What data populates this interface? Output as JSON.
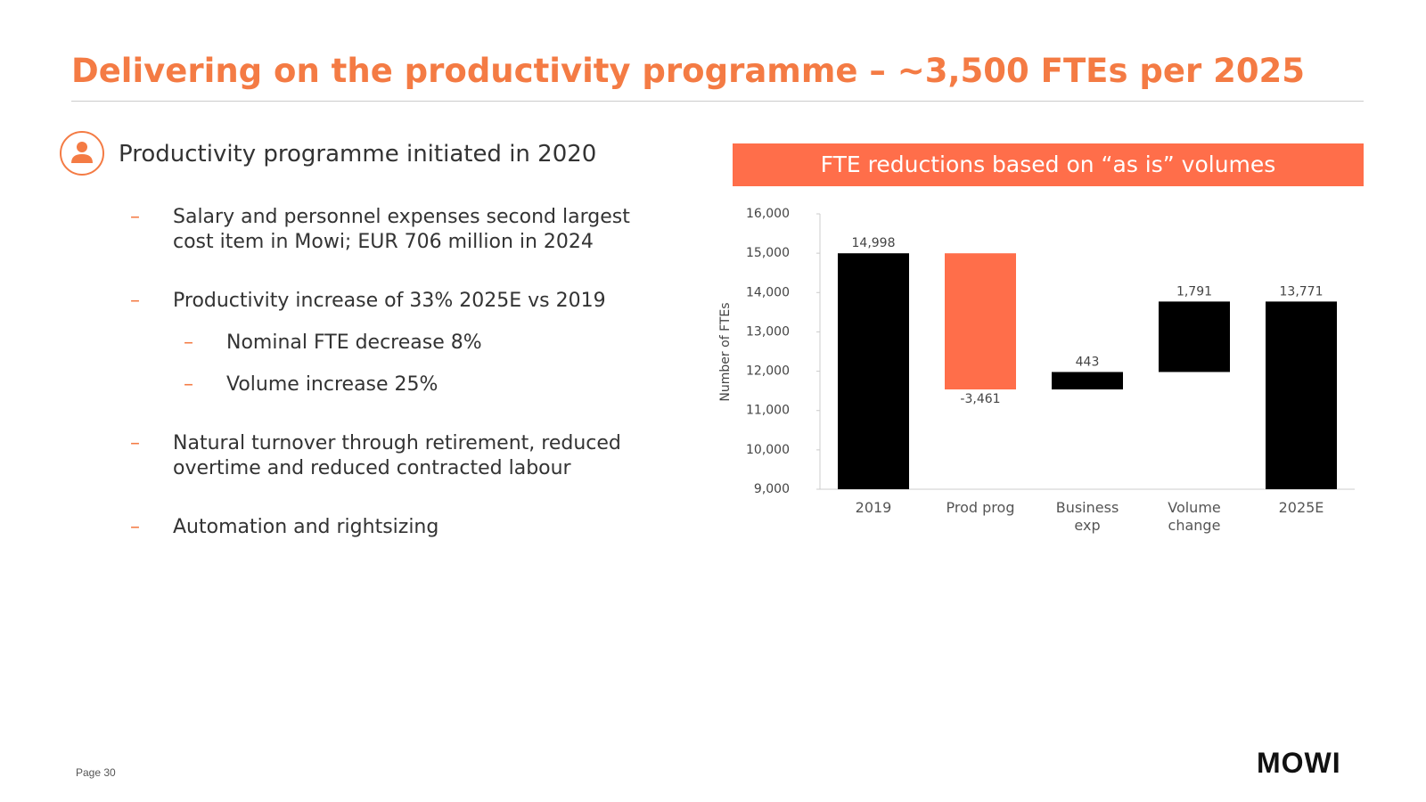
{
  "title": "Delivering on the productivity programme – ~3,500 FTEs per 2025",
  "section": {
    "heading": "Productivity programme initiated in 2020",
    "bullets": [
      {
        "text": "Salary and personnel expenses second largest cost item in Mowi; EUR 706 million in 2024"
      },
      {
        "text": "Productivity increase of 33% 2025E vs 2019",
        "sub": [
          "Nominal FTE decrease 8%",
          "Volume increase 25%"
        ]
      },
      {
        "text": "Natural turnover through retirement, reduced overtime and reduced contracted labour"
      },
      {
        "text": "Automation and rightsizing"
      }
    ]
  },
  "panel_header": "FTE reductions based on “as is” volumes",
  "chart_data": {
    "type": "waterfall",
    "y_label": "Number of FTEs",
    "categories": [
      "2019",
      "Prod prog",
      "Business exp",
      "Volume change",
      "2025E"
    ],
    "values": [
      14998,
      -3461,
      443,
      1791,
      13771
    ],
    "value_labels": [
      "14,998",
      "-3,461",
      "443",
      "1,791",
      "13,771"
    ],
    "colors": [
      "#000000",
      "#ff6e4a",
      "#000000",
      "#000000",
      "#000000"
    ],
    "ylim": [
      9000,
      16000
    ],
    "yticks": [
      {
        "value": 9000,
        "label": "9,000"
      },
      {
        "value": 10000,
        "label": "10,000"
      },
      {
        "value": 11000,
        "label": "11,000"
      },
      {
        "value": 12000,
        "label": "12,000"
      },
      {
        "value": 13000,
        "label": "13,000"
      },
      {
        "value": 14000,
        "label": "14,000"
      },
      {
        "value": 15000,
        "label": "15,000"
      },
      {
        "value": 16000,
        "label": "16,000"
      }
    ],
    "grid": false
  },
  "footer": {
    "page": "Page 30",
    "logo": "MOWI"
  }
}
